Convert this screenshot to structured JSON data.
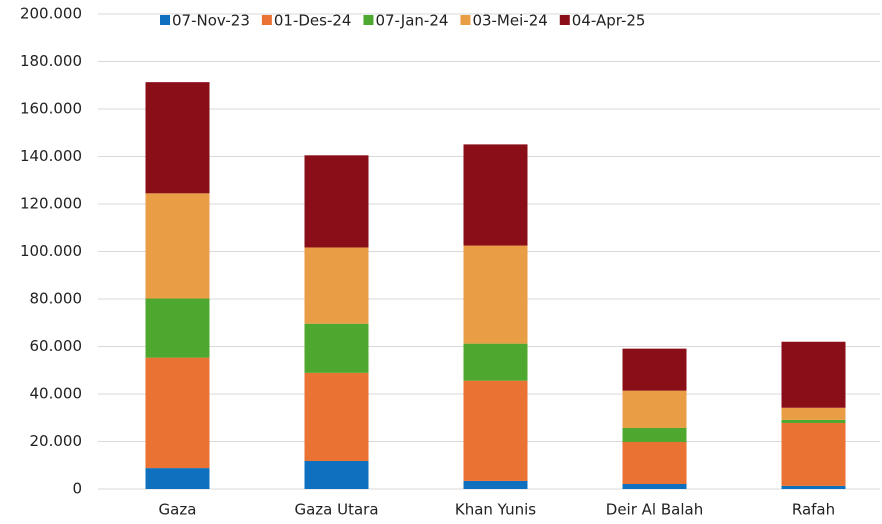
{
  "chart_data": {
    "type": "stacked_bar",
    "categories": [
      "Gaza",
      "Gaza Utara",
      "Khan Yunis",
      "Deir Al Balah",
      "Rafah"
    ],
    "series": [
      {
        "name": "07-Nov-23",
        "color": "#0f70c0",
        "values": [
          8800,
          11800,
          3400,
          2100,
          1300
        ]
      },
      {
        "name": "01-Des-24",
        "color": "#ea7233",
        "values": [
          46500,
          37100,
          42200,
          17700,
          26500
        ]
      },
      {
        "name": "07-Jan-24",
        "color": "#4ea72e",
        "values": [
          24900,
          20700,
          15600,
          5900,
          1300
        ]
      },
      {
        "name": "03-Mei-24",
        "color": "#e99d45",
        "values": [
          44300,
          32100,
          41300,
          15700,
          5100
        ]
      },
      {
        "name": "04-Apr-25",
        "color": "#8a0e17",
        "values": [
          46800,
          38800,
          42600,
          17700,
          27800
        ]
      }
    ],
    "ylim": [
      0,
      200000
    ],
    "yticks": [
      0,
      {
        "value": 20000,
        "label": "20.000"
      },
      {
        "value": 40000,
        "label": "40.000"
      },
      {
        "value": 60000,
        "label": "60.000"
      },
      {
        "value": 80000,
        "label": "80.000"
      },
      {
        "value": 100000,
        "label": "100.000"
      },
      {
        "value": 120000,
        "label": "120.000"
      },
      {
        "value": 140000,
        "label": "140.000"
      },
      {
        "value": 160000,
        "label": "160.000"
      },
      {
        "value": 180000,
        "label": "180.000"
      },
      {
        "value": 200000,
        "label": "200.000"
      }
    ],
    "grid": true,
    "legend": "top"
  }
}
